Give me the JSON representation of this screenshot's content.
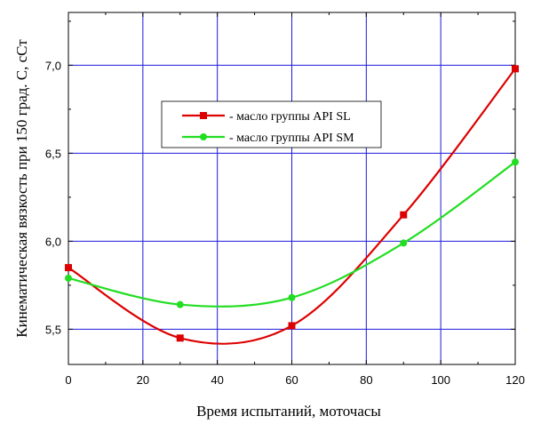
{
  "chart_data": {
    "type": "line",
    "xlabel": "Время испытаний, моточасы",
    "ylabel": "Кинематическая вязкость при 150 град. С, сСт",
    "xlim": [
      0,
      120
    ],
    "ylim": [
      5.3,
      7.3
    ],
    "x_ticks": [
      0,
      20,
      40,
      60,
      80,
      100,
      120
    ],
    "x_tick_labels": [
      "0",
      "20",
      "40",
      "60",
      "80",
      "100",
      "120"
    ],
    "y_ticks": [
      5.5,
      6.0,
      6.5,
      7.0
    ],
    "y_tick_labels": [
      "5,5",
      "6,0",
      "6,5",
      "7,0"
    ],
    "grid": true,
    "legend_position": "upper-center",
    "series": [
      {
        "name": "- масло группы API SL",
        "color": "#dd0000",
        "marker": "square",
        "x": [
          0,
          30,
          60,
          90,
          120
        ],
        "values": [
          5.85,
          5.45,
          5.52,
          6.15,
          6.98
        ]
      },
      {
        "name": "- масло группы API SM",
        "color": "#22dd22",
        "marker": "circle",
        "x": [
          0,
          30,
          60,
          90,
          120
        ],
        "values": [
          5.79,
          5.64,
          5.68,
          5.99,
          6.45
        ]
      }
    ]
  }
}
